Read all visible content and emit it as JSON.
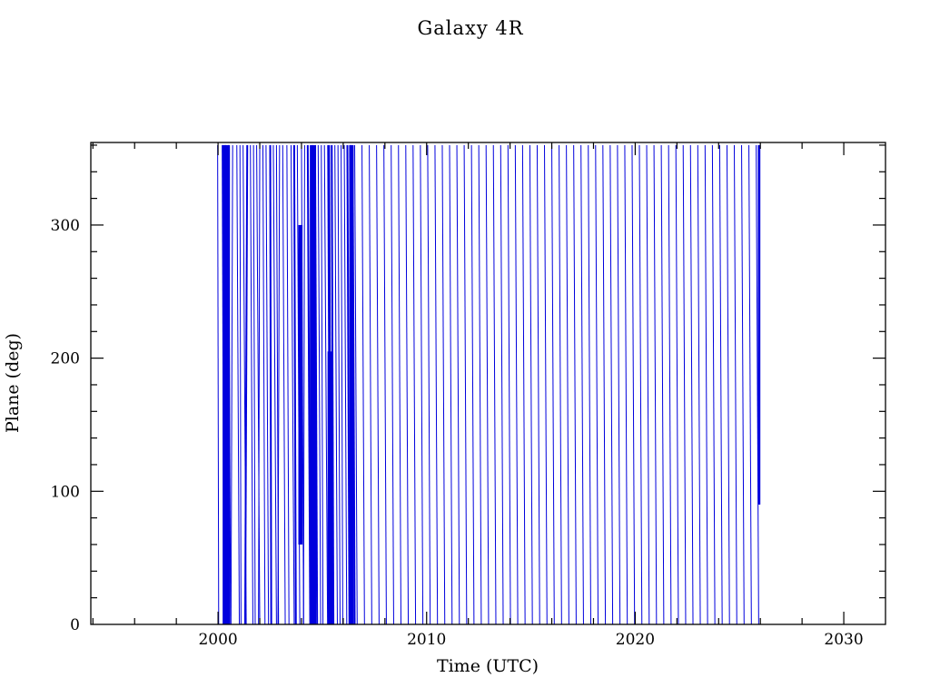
{
  "chart_data": {
    "type": "line",
    "title": "Galaxy 4R",
    "xlabel": "Time (UTC)",
    "ylabel": "Plane (deg)",
    "xlim": [
      1993.9,
      2032.0
    ],
    "ylim": [
      0,
      362
    ],
    "x_major_ticks": [
      2000,
      2010,
      2020,
      2030
    ],
    "x_minor_step": 2,
    "y_major_ticks": [
      0,
      100,
      200,
      300
    ],
    "y_minor_step": 20,
    "line_color": "#0000dd",
    "axis_color": "#000000",
    "grid": false,
    "legend": "none",
    "series_description": "Orbital plane angle wrapping 0-360 deg versus time: no data before ~2000; dense irregular wrap lines 2000-2006.5 with several thick blue clusters; evenly spaced near-vertical wrap lines every ~0.35 yr from 2006.5 to 2026.1; blank after 2026.1",
    "regular_wraps": {
      "start": 2006.55,
      "end": 2026.1,
      "period_years": 0.35,
      "slant_years": 0.12
    },
    "chaotic_wraps": [
      [
        1999.98,
        1,
        0.05
      ],
      [
        2000.22,
        2,
        0.08
      ],
      [
        2000.35,
        2,
        -0.05
      ],
      [
        2000.5,
        1,
        0.1
      ],
      [
        2000.7,
        1,
        -0.08
      ],
      [
        2000.9,
        1,
        0.12
      ],
      [
        2001.05,
        1,
        0.05
      ],
      [
        2001.2,
        1,
        0.15
      ],
      [
        2001.4,
        2,
        -0.1
      ],
      [
        2001.55,
        1,
        0.12
      ],
      [
        2001.7,
        1,
        0.08
      ],
      [
        2001.85,
        1,
        0.15
      ],
      [
        2002.0,
        1,
        -0.06
      ],
      [
        2002.15,
        1,
        0.1
      ],
      [
        2002.3,
        1,
        0.12
      ],
      [
        2002.5,
        2,
        0.05
      ],
      [
        2002.65,
        1,
        0.15
      ],
      [
        2002.8,
        1,
        0.1
      ],
      [
        2002.95,
        1,
        -0.08
      ],
      [
        2003.1,
        1,
        0.12
      ],
      [
        2003.3,
        1,
        0.1
      ],
      [
        2003.5,
        1,
        0.15
      ],
      [
        2003.65,
        2,
        0.08
      ],
      [
        2003.8,
        1,
        0.12
      ],
      [
        2004.0,
        1,
        0.1
      ],
      [
        2004.15,
        1,
        -0.05
      ],
      [
        2004.3,
        2,
        0.12
      ],
      [
        2004.5,
        3,
        0.08
      ],
      [
        2004.65,
        2,
        0.1
      ],
      [
        2004.8,
        1,
        0.12
      ],
      [
        2004.95,
        1,
        0.08
      ],
      [
        2005.1,
        1,
        0.15
      ],
      [
        2005.3,
        3,
        0.1
      ],
      [
        2005.45,
        2,
        0.08
      ],
      [
        2005.6,
        1,
        0.12
      ],
      [
        2005.75,
        1,
        0.1
      ],
      [
        2005.9,
        1,
        0.08
      ],
      [
        2006.05,
        1,
        0.12
      ],
      [
        2006.2,
        2,
        0.1
      ],
      [
        2006.35,
        3,
        0.05
      ],
      [
        2006.45,
        2,
        0.1
      ]
    ],
    "dense_clusters": [
      [
        2000.22,
        0.35,
        0,
        360
      ],
      [
        2003.85,
        0.2,
        60,
        300
      ],
      [
        2004.4,
        0.3,
        0,
        360
      ],
      [
        2005.25,
        0.25,
        0,
        205
      ],
      [
        2006.3,
        0.2,
        0,
        360
      ],
      [
        2025.88,
        0.12,
        90,
        360
      ]
    ]
  }
}
